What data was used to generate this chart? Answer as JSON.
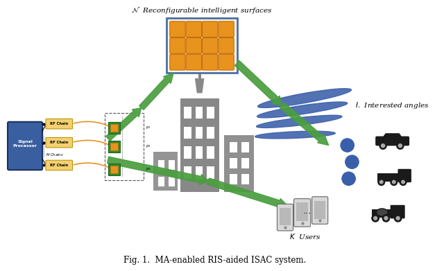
{
  "title": "Fig. 1.  MA-enabled RIS-aided ISAC system.",
  "bg_color": "#ffffff",
  "ris_title": "$\\mathcal{N}$  Reconfigurable intelligent surfaces",
  "angles_label": "$I$.  Interested angles",
  "users_label": "$K$  Users",
  "ris_grid_color": "#e8931e",
  "ris_bg_color": "#faf4e8",
  "ris_border_color": "#4a6fa5",
  "green_color": "#4a9e3f",
  "blue_color": "#3a5faa",
  "signal_proc_color": "#3a5fa0",
  "rf_chain_color": "#f5d070",
  "rf_chain_border": "#b8960a",
  "building_color": "#888888",
  "building_dark": "#767676",
  "orange_color": "#e8931e",
  "vehicle_color": "#1a1a1a"
}
